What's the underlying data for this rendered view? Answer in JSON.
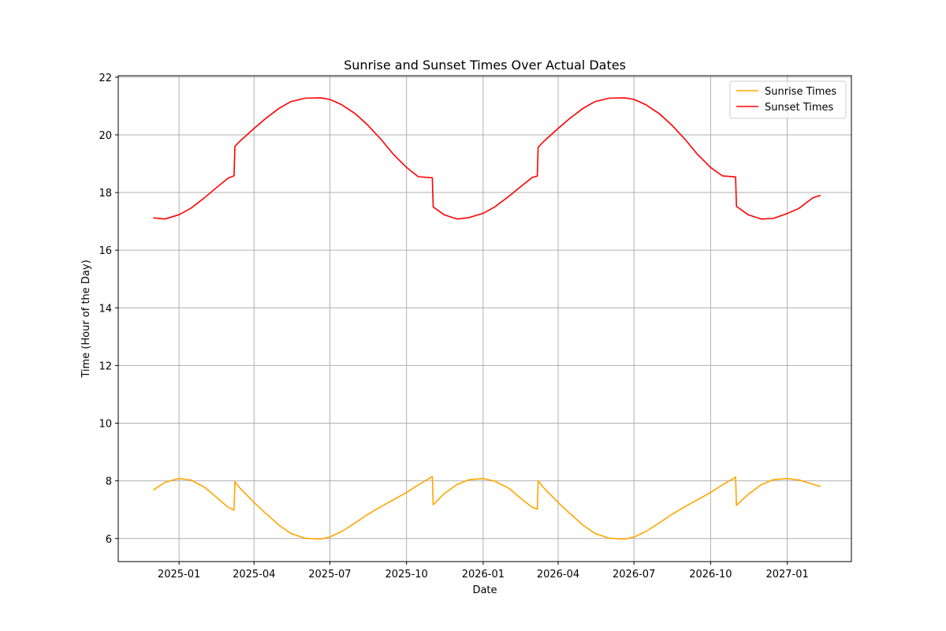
{
  "chart_data": {
    "type": "line",
    "title": "Sunrise and Sunset Times Over Actual Dates",
    "xlabel": "Date",
    "ylabel": "Time (Hour of the Day)",
    "xlim": [
      "2024-10-20",
      "2027-03-19"
    ],
    "ylim": [
      5.2,
      22.05
    ],
    "grid": true,
    "legend_position": "top-right",
    "x_ticks": [
      "2025-01",
      "2025-04",
      "2025-07",
      "2025-10",
      "2026-01",
      "2026-04",
      "2026-07",
      "2026-10",
      "2027-01"
    ],
    "y_ticks": [
      6,
      8,
      10,
      12,
      14,
      16,
      18,
      20,
      22
    ],
    "x": [
      "2024-12-01",
      "2024-12-15",
      "2025-01-01",
      "2025-01-15",
      "2025-02-01",
      "2025-02-15",
      "2025-03-01",
      "2025-03-08",
      "2025-03-09",
      "2025-03-15",
      "2025-04-01",
      "2025-04-15",
      "2025-05-01",
      "2025-05-15",
      "2025-06-01",
      "2025-06-20",
      "2025-07-01",
      "2025-07-15",
      "2025-08-01",
      "2025-08-15",
      "2025-09-01",
      "2025-09-15",
      "2025-10-01",
      "2025-10-15",
      "2025-11-01",
      "2025-11-02",
      "2025-11-15",
      "2025-12-01",
      "2025-12-15",
      "2026-01-01",
      "2026-01-15",
      "2026-02-01",
      "2026-02-15",
      "2026-03-01",
      "2026-03-07",
      "2026-03-08",
      "2026-03-15",
      "2026-04-01",
      "2026-04-15",
      "2026-05-01",
      "2026-05-15",
      "2026-06-01",
      "2026-06-20",
      "2026-07-01",
      "2026-07-15",
      "2026-08-01",
      "2026-08-15",
      "2026-09-01",
      "2026-09-15",
      "2026-10-01",
      "2026-10-15",
      "2026-10-31",
      "2026-11-01",
      "2026-11-15",
      "2026-12-01",
      "2026-12-15",
      "2027-01-01",
      "2027-01-15",
      "2027-02-01",
      "2027-02-10"
    ],
    "series": [
      {
        "name": "Sunrise Times",
        "color": "#ffa500",
        "values": [
          7.68,
          7.95,
          8.08,
          8.03,
          7.77,
          7.43,
          7.08,
          6.99,
          7.97,
          7.75,
          7.25,
          6.87,
          6.46,
          6.18,
          6.01,
          5.98,
          6.05,
          6.24,
          6.55,
          6.83,
          7.12,
          7.34,
          7.6,
          7.86,
          8.15,
          7.17,
          7.55,
          7.88,
          8.04,
          8.08,
          7.99,
          7.74,
          7.4,
          7.08,
          7.02,
          8.0,
          7.75,
          7.25,
          6.87,
          6.46,
          6.18,
          6.01,
          5.98,
          6.05,
          6.24,
          6.55,
          6.83,
          7.12,
          7.34,
          7.6,
          7.86,
          8.13,
          7.15,
          7.53,
          7.87,
          8.04,
          8.08,
          8.03,
          7.88,
          7.8
        ]
      },
      {
        "name": "Sunset Times",
        "color": "#ff0000",
        "values": [
          17.12,
          17.08,
          17.23,
          17.45,
          17.83,
          18.17,
          18.5,
          18.58,
          19.6,
          19.78,
          20.22,
          20.57,
          20.92,
          21.15,
          21.27,
          21.28,
          21.23,
          21.05,
          20.72,
          20.35,
          19.82,
          19.33,
          18.87,
          18.55,
          18.51,
          17.5,
          17.23,
          17.08,
          17.13,
          17.28,
          17.5,
          17.87,
          18.2,
          18.52,
          18.57,
          19.57,
          19.78,
          20.22,
          20.57,
          20.92,
          21.15,
          21.27,
          21.28,
          21.23,
          21.05,
          20.72,
          20.35,
          19.82,
          19.33,
          18.87,
          18.58,
          18.54,
          17.52,
          17.23,
          17.08,
          17.1,
          17.27,
          17.45,
          17.82,
          17.9
        ]
      }
    ]
  }
}
